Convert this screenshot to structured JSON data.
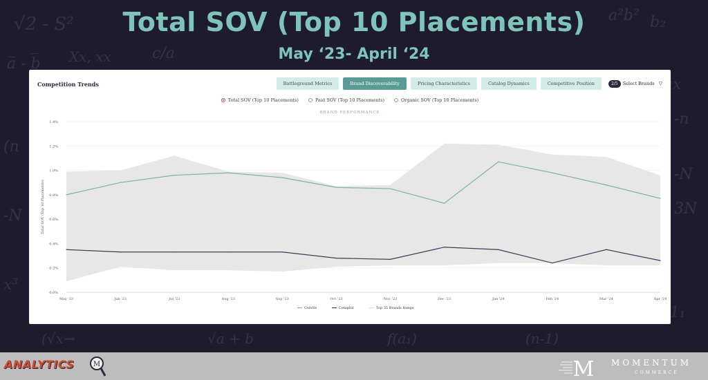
{
  "slide": {
    "title": "Total SOV (Top 10 Placements)",
    "subtitle": "May ‘23- April ‘24"
  },
  "panel": {
    "header": "Competition Trends",
    "tabs": [
      {
        "label": "Battleground Metrics",
        "active": false
      },
      {
        "label": "Brand Discoverability",
        "active": true
      },
      {
        "label": "Pricing Characteristics",
        "active": false
      },
      {
        "label": "Catalog Dynamics",
        "active": false
      },
      {
        "label": "Competitive Position",
        "active": false
      }
    ],
    "brand_count": "2/5",
    "brand_select_label": "Select Brands",
    "radios": [
      {
        "label": "Total SOV (Top 10 Placements)",
        "selected": true
      },
      {
        "label": "Paid SOV (Top 10 Placements)",
        "selected": false
      },
      {
        "label": "Organic SOV (Top 10 Placements)",
        "selected": false
      }
    ]
  },
  "colors": {
    "accent": "#7fc4b9",
    "corave": "#7fb1a6",
    "cetaphil": "#3b3a56",
    "range": "#e6e7e6",
    "active_tab": "#5a9c93"
  },
  "chart_data": {
    "type": "line",
    "title": "BRAND PERFORMANCE",
    "xlabel": "",
    "ylabel": "Total SOV (Top 10 Placements)",
    "categories": [
      "May '23",
      "Jun '23",
      "Jul '23",
      "Aug '23",
      "Sep '23",
      "Oct '23",
      "Nov '23",
      "Dec '23",
      "Jan '24",
      "Feb '24",
      "Mar '24",
      "Apr '24"
    ],
    "y_ticks": [
      "0.0%",
      "0.2%",
      "0.4%",
      "0.6%",
      "0.8%",
      "1.0%",
      "1.2%",
      "1.4%"
    ],
    "ylim": [
      0,
      1.4
    ],
    "grid": true,
    "legend_position": "bottom-center",
    "series": [
      {
        "name": "CeraVe",
        "type": "line",
        "values": [
          0.8,
          0.9,
          0.96,
          0.98,
          0.94,
          0.86,
          0.85,
          0.73,
          1.07,
          0.98,
          0.88,
          0.77
        ]
      },
      {
        "name": "Cetaphil",
        "type": "line",
        "values": [
          0.35,
          0.33,
          0.33,
          0.33,
          0.33,
          0.28,
          0.27,
          0.37,
          0.35,
          0.24,
          0.35,
          0.26
        ]
      },
      {
        "name": "Top 35 Brands Range",
        "type": "range",
        "low": [
          0.09,
          0.21,
          0.18,
          0.18,
          0.17,
          0.21,
          0.22,
          0.22,
          0.24,
          0.24,
          0.22,
          0.22
        ],
        "high": [
          0.99,
          1.0,
          1.12,
          0.99,
          0.98,
          0.87,
          0.88,
          1.22,
          1.21,
          1.13,
          1.11,
          0.96
        ]
      }
    ]
  },
  "footer": {
    "analytics_label": "ANALYTICS",
    "company_name": "MOMENTUM",
    "company_sub": "COMMERCE"
  }
}
